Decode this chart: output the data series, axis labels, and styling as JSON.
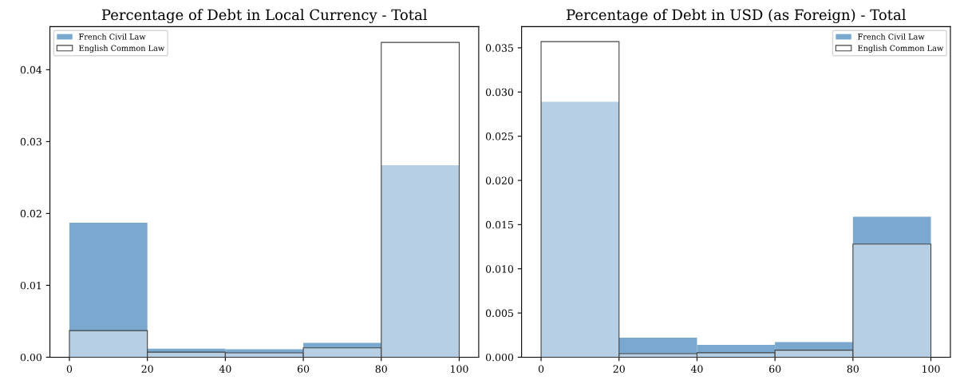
{
  "chart_data": [
    {
      "type": "histogram",
      "title": "Percentage of Debt in Local Currency - Total",
      "bins": [
        0,
        20,
        40,
        60,
        80,
        100
      ],
      "series": [
        {
          "name": "French Civil Law",
          "color": "#7aa8cf",
          "values": [
            0.0187,
            0.0012,
            0.0011,
            0.002,
            0.0267
          ]
        },
        {
          "name": "English Common Law",
          "color": "#ffffff",
          "values": [
            0.0037,
            0.0007,
            0.0006,
            0.0013,
            0.0438
          ]
        }
      ],
      "xlim": [
        -5,
        105
      ],
      "xticks": [
        0,
        20,
        40,
        60,
        80,
        100
      ],
      "ylim": [
        0,
        0.046
      ],
      "yticks": [
        {
          "value": 0,
          "label": "0.00"
        },
        0.01,
        0.02,
        0.03,
        0.04
      ],
      "grid": false,
      "legend": "top left"
    },
    {
      "type": "histogram",
      "title": "Percentage of Debt in USD (as Foreign) - Total",
      "bins": [
        0,
        20,
        40,
        60,
        80,
        100
      ],
      "series": [
        {
          "name": "French Civil Law",
          "color": "#7aa8cf",
          "values": [
            0.0289,
            0.0022,
            0.0014,
            0.0017,
            0.0159
          ]
        },
        {
          "name": "English Common Law",
          "color": "#ffffff",
          "values": [
            0.0357,
            0.0004,
            0.0005,
            0.0008,
            0.0128
          ]
        }
      ],
      "xlim": [
        -5,
        105
      ],
      "xticks": [
        0,
        20,
        40,
        60,
        80,
        100
      ],
      "ylim": [
        0,
        0.0374
      ],
      "yticks": [
        {
          "value": 0,
          "label": "0.000"
        },
        {
          "value": 0.005,
          "label": "0.005"
        },
        {
          "value": 0.01,
          "label": "0.010"
        },
        {
          "value": 0.015,
          "label": "0.015"
        },
        {
          "value": 0.02,
          "label": "0.020"
        },
        {
          "value": 0.025,
          "label": "0.025"
        },
        {
          "value": 0.03,
          "label": "0.030"
        },
        {
          "value": 0.035,
          "label": "0.035"
        }
      ],
      "grid": false,
      "legend": "top right"
    }
  ]
}
